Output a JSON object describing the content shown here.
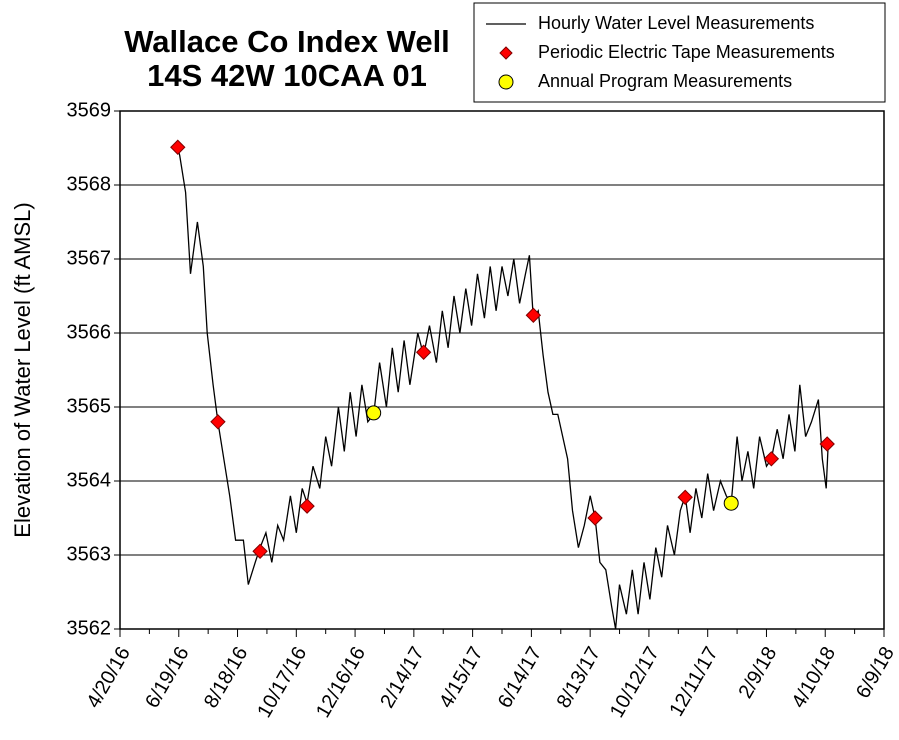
{
  "chart_data": {
    "type": "line",
    "title": [
      "Wallace Co Index Well",
      "14S 42W 10CAA 01"
    ],
    "y_label": "Elevation of Water Level (ft AMSL)",
    "ylim": [
      3562,
      3569
    ],
    "yticks": [
      3562,
      3563,
      3564,
      3565,
      3566,
      3567,
      3568,
      3569
    ],
    "xlim": [
      "4/20/16",
      "6/9/18"
    ],
    "xticks": [
      "4/20/16",
      "6/19/16",
      "8/18/16",
      "10/17/16",
      "12/16/16",
      "2/14/17",
      "4/15/17",
      "6/14/17",
      "8/13/17",
      "10/12/17",
      "12/11/17",
      "2/9/18",
      "4/10/18",
      "6/9/18"
    ],
    "grid": true,
    "legend": "top-right",
    "series": [
      {
        "name": "Hourly Water Level Measurements",
        "color": "#000000",
        "marker": "line",
        "x": [
          "6/18/16",
          "6/20/16",
          "6/26/16",
          "7/1/16",
          "7/8/16",
          "7/14/16",
          "7/18/16",
          "7/24/16",
          "7/29/16",
          "8/4/16",
          "8/10/16",
          "8/16/16",
          "8/24/16",
          "8/29/16",
          "9/5/16",
          "9/10/16",
          "9/16/16",
          "9/22/16",
          "9/28/16",
          "10/4/16",
          "10/11/16",
          "10/17/16",
          "10/23/16",
          "10/28/16",
          "11/3/16",
          "11/10/16",
          "11/16/16",
          "11/22/16",
          "11/29/16",
          "12/5/16",
          "12/11/16",
          "12/17/16",
          "12/23/16",
          "12/29/16",
          "1/4/17",
          "1/10/17",
          "1/17/17",
          "1/23/17",
          "1/29/17",
          "2/4/17",
          "2/10/17",
          "2/18/17",
          "2/24/17",
          "3/2/17",
          "3/9/17",
          "3/15/17",
          "3/21/17",
          "3/27/17",
          "4/2/17",
          "4/8/17",
          "4/14/17",
          "4/20/17",
          "4/27/17",
          "5/3/17",
          "5/9/17",
          "5/15/17",
          "5/21/17",
          "5/27/17",
          "6/2/17",
          "6/8/17",
          "6/12/17",
          "6/16/17",
          "6/21/17",
          "6/26/17",
          "7/1/17",
          "7/6/17",
          "7/11/17",
          "7/16/17",
          "7/21/17",
          "7/26/17",
          "8/1/17",
          "8/7/17",
          "8/13/17",
          "8/18/17",
          "8/23/17",
          "8/29/17",
          "9/4/17",
          "9/8/17",
          "9/12/17",
          "9/19/17",
          "9/25/17",
          "10/1/17",
          "10/7/17",
          "10/13/17",
          "10/19/17",
          "10/25/17",
          "10/31/17",
          "11/7/17",
          "11/13/17",
          "11/18/17",
          "11/23/17",
          "11/29/17",
          "12/5/17",
          "12/11/17",
          "12/17/17",
          "12/24/17",
          "12/30/17",
          "1/4/18",
          "1/10/18",
          "1/15/18",
          "1/21/18",
          "1/27/18",
          "2/2/18",
          "2/9/18",
          "2/14/18",
          "2/20/18",
          "2/26/18",
          "3/4/18",
          "3/10/18",
          "3/15/18",
          "3/21/18",
          "3/27/18",
          "4/3/18",
          "4/7/18",
          "4/11/18",
          "4/13/18"
        ],
        "values": [
          3568.5,
          3568.4,
          3567.9,
          3566.8,
          3567.5,
          3566.9,
          3566.0,
          3565.3,
          3564.8,
          3564.3,
          3563.8,
          3563.2,
          3563.2,
          3562.6,
          3562.9,
          3563.1,
          3563.3,
          3562.9,
          3563.4,
          3563.2,
          3563.8,
          3563.3,
          3563.9,
          3563.7,
          3564.2,
          3563.9,
          3564.6,
          3564.2,
          3565.0,
          3564.4,
          3565.2,
          3564.6,
          3565.3,
          3564.8,
          3564.9,
          3565.6,
          3565.0,
          3565.8,
          3565.2,
          3565.9,
          3565.3,
          3566.0,
          3565.7,
          3566.1,
          3565.6,
          3566.3,
          3565.8,
          3566.5,
          3566.0,
          3566.6,
          3566.1,
          3566.8,
          3566.2,
          3566.9,
          3566.3,
          3566.9,
          3566.5,
          3567.0,
          3566.4,
          3566.8,
          3567.05,
          3566.2,
          3566.3,
          3565.7,
          3565.2,
          3564.9,
          3564.9,
          3564.6,
          3564.3,
          3563.6,
          3563.1,
          3563.4,
          3563.8,
          3563.5,
          3562.9,
          3562.8,
          3562.3,
          3562.0,
          3562.6,
          3562.2,
          3562.8,
          3562.2,
          3562.9,
          3562.4,
          3563.1,
          3562.7,
          3563.4,
          3563.0,
          3563.6,
          3563.8,
          3563.3,
          3563.9,
          3563.5,
          3564.1,
          3563.6,
          3564.0,
          3563.8,
          3563.7,
          3564.6,
          3564.0,
          3564.4,
          3563.9,
          3564.6,
          3564.2,
          3564.3,
          3564.7,
          3564.3,
          3564.9,
          3564.4,
          3565.3,
          3564.6,
          3564.8,
          3565.1,
          3564.3,
          3563.9,
          3564.5
        ]
      },
      {
        "name": "Periodic Electric Tape Measurements",
        "color": "#ff0000",
        "marker": "diamond",
        "x": [
          "6/18/16",
          "7/29/16",
          "9/10/16",
          "10/28/16",
          "2/24/17",
          "6/16/17",
          "8/18/17",
          "11/18/17",
          "2/14/18",
          "4/12/18"
        ],
        "values": [
          3568.51,
          3564.8,
          3563.05,
          3563.66,
          3565.74,
          3566.24,
          3563.5,
          3563.78,
          3564.3,
          3564.5
        ]
      },
      {
        "name": "Annual Program Measurements",
        "color": "#ffff00",
        "marker": "circle",
        "x": [
          "1/4/17",
          "1/4/18"
        ],
        "values": [
          3564.92,
          3563.7
        ]
      }
    ]
  }
}
